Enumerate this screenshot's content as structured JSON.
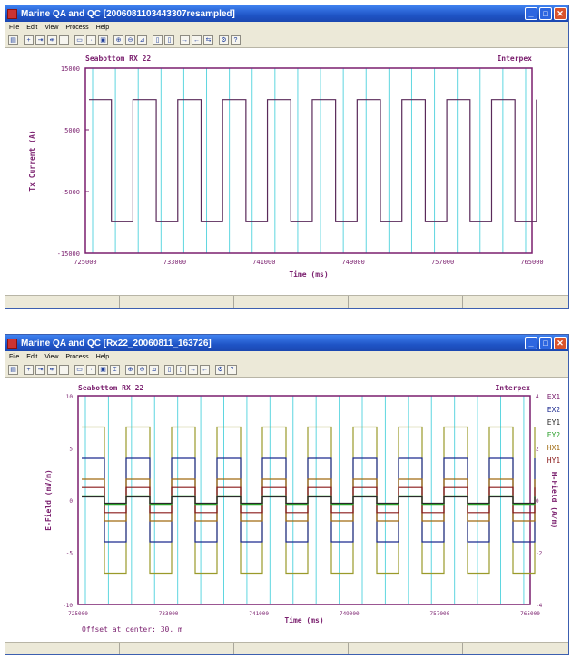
{
  "window1": {
    "title": "Marine QA and QC [2006081103443307resampled]",
    "menu": [
      "File",
      "Edit",
      "View",
      "Process",
      "Help"
    ],
    "plot": {
      "header_left": "Seabottom RX 22",
      "header_right": "Interpex",
      "ylabel": "Tx Current (A)",
      "xlabel": "Time (ms)",
      "yticks": [
        "15000",
        "5000",
        "-5000",
        "-15000"
      ],
      "xticks": [
        "725000",
        "733000",
        "741000",
        "749000",
        "757000",
        "765000"
      ]
    }
  },
  "window2": {
    "title": "Marine QA and QC [Rx22_20060811_163726]",
    "menu": [
      "File",
      "Edit",
      "View",
      "Process",
      "Help"
    ],
    "plot": {
      "header_left": "Seabottom RX 22",
      "header_right": "Interpex",
      "ylabel_left": "E-Field (mV/m)",
      "ylabel_right": "H-Field (A/m)",
      "xlabel": "Time (ms)",
      "yticks_left": [
        "10",
        "5",
        "0",
        "-5",
        "-10"
      ],
      "yticks_right": [
        "4",
        "2",
        "0",
        "-2",
        "-4"
      ],
      "xticks": [
        "725000",
        "733000",
        "741000",
        "749000",
        "757000",
        "765000"
      ],
      "legend": [
        {
          "label": "EX1",
          "color": "#7a1f6e"
        },
        {
          "label": "EX2",
          "color": "#1c2a8f"
        },
        {
          "label": "EY1",
          "color": "#2a2a2a"
        },
        {
          "label": "EY2",
          "color": "#2ca02c"
        },
        {
          "label": "HX1",
          "color": "#a06a10"
        },
        {
          "label": "HY1",
          "color": "#8a1a1a"
        }
      ],
      "offset_text": "Offset at center:    30. m"
    }
  },
  "colors": {
    "plot_frame": "#7a1f6e",
    "cyan": "#5fd6e0",
    "title_blue": "#1f54c6"
  },
  "chart_data": [
    {
      "type": "line",
      "title": "Seabottom RX 22",
      "xlabel": "Time (ms)",
      "ylabel": "Tx Current (A)",
      "xlim": [
        725000,
        765000
      ],
      "ylim": [
        -15000,
        15000
      ],
      "series": [
        {
          "values_description_free": true,
          "x": [
            725000,
            725600,
            726500,
            727400,
            733000,
            733600,
            734500,
            735400
          ],
          "y": [
            10000,
            10000,
            -10000,
            -10000,
            10000,
            10000,
            -10000,
            -10000
          ]
        }
      ]
    },
    {
      "type": "line",
      "title": "Seabottom RX 22",
      "xlabel": "Time (ms)",
      "ylabel": "E-Field (mV/m)",
      "xlim": [
        725000,
        765000
      ],
      "ylim": [
        -10,
        10
      ],
      "series": [
        {
          "name": "EX1",
          "amplitude": 7
        },
        {
          "name": "EX2",
          "amplitude": 4
        },
        {
          "name": "EY1",
          "amplitude": 0.3
        },
        {
          "name": "EY2",
          "amplitude": 0.4
        },
        {
          "name": "HX1",
          "amplitude": 2
        },
        {
          "name": "HY1",
          "amplitude": 1.2
        }
      ]
    }
  ]
}
